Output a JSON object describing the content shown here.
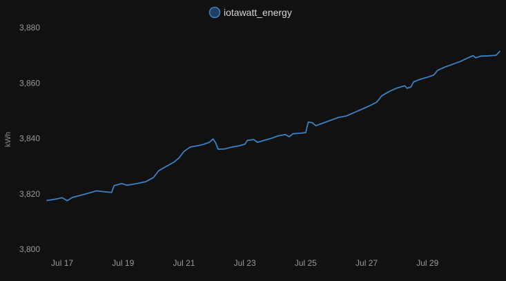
{
  "chart_data": {
    "type": "line",
    "ylabel": "kWh",
    "ylim": [
      3800,
      3880
    ],
    "yticks": [
      3800,
      3820,
      3840,
      3860,
      3880
    ],
    "ytick_labels": [
      "3,800",
      "3,820",
      "3,840",
      "3,860",
      "3,880"
    ],
    "xlim": [
      "2023-07-16T12:00",
      "2023-07-31T09:00"
    ],
    "xticks": [
      "2023-07-17",
      "2023-07-19",
      "2023-07-21",
      "2023-07-23",
      "2023-07-25",
      "2023-07-27",
      "2023-07-29"
    ],
    "xtick_labels": [
      "Jul 17",
      "Jul 19",
      "Jul 21",
      "Jul 23",
      "Jul 25",
      "Jul 27",
      "Jul 29"
    ],
    "grid": false,
    "legend": "top-center",
    "series": [
      {
        "name": "iotawatt_energy",
        "color": "#3b82c4",
        "points": [
          [
            "2023-07-16T12:00",
            3817.6
          ],
          [
            "2023-07-16T19:00",
            3818.1
          ],
          [
            "2023-07-17T00:00",
            3818.6
          ],
          [
            "2023-07-17T04:00",
            3817.5
          ],
          [
            "2023-07-17T08:00",
            3818.7
          ],
          [
            "2023-07-17T14:00",
            3819.4
          ],
          [
            "2023-07-17T22:00",
            3820.4
          ],
          [
            "2023-07-18T03:00",
            3821.1
          ],
          [
            "2023-07-18T08:00",
            3820.8
          ],
          [
            "2023-07-18T15:00",
            3820.5
          ],
          [
            "2023-07-18T17:00",
            3823.0
          ],
          [
            "2023-07-18T23:00",
            3823.7
          ],
          [
            "2023-07-19T03:00",
            3823.1
          ],
          [
            "2023-07-19T07:00",
            3823.4
          ],
          [
            "2023-07-19T12:00",
            3823.8
          ],
          [
            "2023-07-19T18:00",
            3824.4
          ],
          [
            "2023-07-20T00:00",
            3825.9
          ],
          [
            "2023-07-20T04:00",
            3828.3
          ],
          [
            "2023-07-20T10:00",
            3829.9
          ],
          [
            "2023-07-20T16:00",
            3831.4
          ],
          [
            "2023-07-20T20:00",
            3832.9
          ],
          [
            "2023-07-21T00:00",
            3835.3
          ],
          [
            "2023-07-21T05:00",
            3836.9
          ],
          [
            "2023-07-21T10:00",
            3837.3
          ],
          [
            "2023-07-21T15:00",
            3837.8
          ],
          [
            "2023-07-21T20:00",
            3838.6
          ],
          [
            "2023-07-21T23:00",
            3839.8
          ],
          [
            "2023-07-22T01:00",
            3838.4
          ],
          [
            "2023-07-22T03:00",
            3836.1
          ],
          [
            "2023-07-22T08:00",
            3836.2
          ],
          [
            "2023-07-22T14:00",
            3836.9
          ],
          [
            "2023-07-22T19:00",
            3837.3
          ],
          [
            "2023-07-23T00:00",
            3837.9
          ],
          [
            "2023-07-23T02:00",
            3839.3
          ],
          [
            "2023-07-23T07:00",
            3839.6
          ],
          [
            "2023-07-23T10:00",
            3838.6
          ],
          [
            "2023-07-23T16:00",
            3839.4
          ],
          [
            "2023-07-23T22:00",
            3840.2
          ],
          [
            "2023-07-24T02:00",
            3840.9
          ],
          [
            "2023-07-24T08:00",
            3841.4
          ],
          [
            "2023-07-24T11:00",
            3840.6
          ],
          [
            "2023-07-24T14:00",
            3841.7
          ],
          [
            "2023-07-24T20:00",
            3841.9
          ],
          [
            "2023-07-25T00:00",
            3842.1
          ],
          [
            "2023-07-25T02:00",
            3845.9
          ],
          [
            "2023-07-25T05:00",
            3845.7
          ],
          [
            "2023-07-25T08:00",
            3844.6
          ],
          [
            "2023-07-25T14:00",
            3845.6
          ],
          [
            "2023-07-25T20:00",
            3846.6
          ],
          [
            "2023-07-26T02:00",
            3847.6
          ],
          [
            "2023-07-26T08:00",
            3848.1
          ],
          [
            "2023-07-26T14:00",
            3849.3
          ],
          [
            "2023-07-26T20:00",
            3850.5
          ],
          [
            "2023-07-27T02:00",
            3851.7
          ],
          [
            "2023-07-27T08:00",
            3853.1
          ],
          [
            "2023-07-27T12:00",
            3855.4
          ],
          [
            "2023-07-27T18:00",
            3857.0
          ],
          [
            "2023-07-28T00:00",
            3858.2
          ],
          [
            "2023-07-28T06:00",
            3859.0
          ],
          [
            "2023-07-28T08:00",
            3858.1
          ],
          [
            "2023-07-28T11:00",
            3858.6
          ],
          [
            "2023-07-28T13:00",
            3860.4
          ],
          [
            "2023-07-28T18:00",
            3861.3
          ],
          [
            "2023-07-29T00:00",
            3862.1
          ],
          [
            "2023-07-29T05:00",
            3862.9
          ],
          [
            "2023-07-29T08:00",
            3864.6
          ],
          [
            "2023-07-29T14:00",
            3865.8
          ],
          [
            "2023-07-29T20:00",
            3866.8
          ],
          [
            "2023-07-30T02:00",
            3867.8
          ],
          [
            "2023-07-30T08:00",
            3869.1
          ],
          [
            "2023-07-30T12:00",
            3869.9
          ],
          [
            "2023-07-30T14:00",
            3869.1
          ],
          [
            "2023-07-30T18:00",
            3869.7
          ],
          [
            "2023-07-31T00:00",
            3869.8
          ],
          [
            "2023-07-31T06:00",
            3870.0
          ],
          [
            "2023-07-31T09:00",
            3871.4
          ]
        ]
      }
    ]
  }
}
